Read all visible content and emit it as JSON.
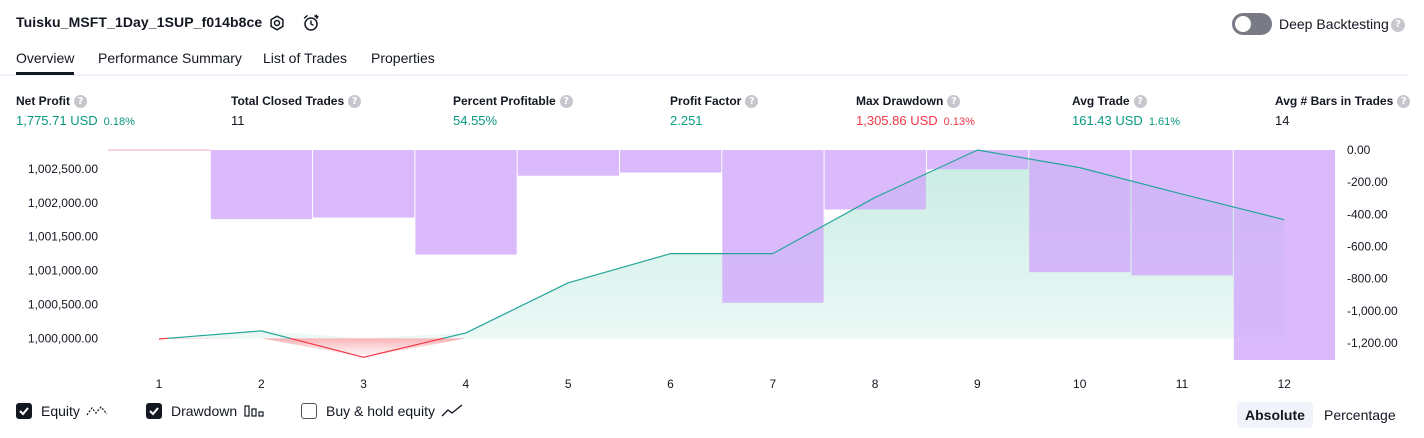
{
  "header": {
    "title": "Tuisku_MSFT_1Day_1SUP_f014b8ce",
    "deep_backtesting_label": "Deep Backtesting",
    "deep_backtesting_on": false,
    "info_glyph": "?"
  },
  "tabs": [
    {
      "label": "Overview",
      "active": true
    },
    {
      "label": "Performance Summary",
      "active": false
    },
    {
      "label": "List of Trades",
      "active": false
    },
    {
      "label": "Properties",
      "active": false
    }
  ],
  "metrics": [
    {
      "label": "Net Profit",
      "value": "1,775.71 USD",
      "pct": "0.18%",
      "color": "green"
    },
    {
      "label": "Total Closed Trades",
      "value": "11",
      "pct": "",
      "color": "dark"
    },
    {
      "label": "Percent Profitable",
      "value": "54.55%",
      "pct": "",
      "color": "green"
    },
    {
      "label": "Profit Factor",
      "value": "2.251",
      "pct": "",
      "color": "green"
    },
    {
      "label": "Max Drawdown",
      "value": "1,305.86 USD",
      "pct": "0.13%",
      "color": "red"
    },
    {
      "label": "Avg Trade",
      "value": "161.43 USD",
      "pct": "1.61%",
      "color": "green"
    },
    {
      "label": "Avg # Bars in Trades",
      "value": "14",
      "pct": "",
      "color": "dark"
    }
  ],
  "chart_data": {
    "type": "line+bar",
    "x": [
      1,
      2,
      3,
      4,
      5,
      6,
      7,
      8,
      9,
      10,
      11,
      12
    ],
    "series": [
      {
        "name": "Equity",
        "type": "area",
        "values": [
          999990,
          1000110,
          999720,
          1000080,
          1000820,
          1001250,
          1001250,
          1002080,
          1002780,
          1002520,
          1002130,
          1001750
        ]
      },
      {
        "name": "Drawdown",
        "type": "bar",
        "axis": "right",
        "values": [
          0,
          -430,
          -420,
          -650,
          -160,
          -140,
          -950,
          -370,
          -120,
          -760,
          -780,
          -1305.86
        ]
      }
    ],
    "left_axis": {
      "ticks": [
        "1,002,500.00",
        "1,002,000.00",
        "1,001,500.00",
        "1,001,000.00",
        "1,000,500.00",
        "1,000,000.00"
      ],
      "range": [
        999680,
        1002780
      ]
    },
    "right_axis": {
      "ticks": [
        "0.00",
        "-200.00",
        "-400.00",
        "-600.00",
        "-800.00",
        "-1,000.00",
        "-1,200.00"
      ],
      "range": [
        -1305.86,
        0
      ]
    },
    "baseline": 1000000,
    "colors": {
      "equity_line": "#26a69a",
      "equity_loss_line": "#f23645",
      "drawdown_bar": "#d1a6fb",
      "equity_fill": "#c8ece3"
    }
  },
  "legend": {
    "items": [
      {
        "label": "Equity",
        "checked": true,
        "icon": "equity-line-icon"
      },
      {
        "label": "Drawdown",
        "checked": true,
        "icon": "drawdown-bars-icon"
      },
      {
        "label": "Buy & hold equity",
        "checked": false,
        "icon": "buy-hold-line-icon"
      }
    ]
  },
  "view_toggle": {
    "absolute": "Absolute",
    "percentage": "Percentage",
    "selected": "Absolute"
  }
}
